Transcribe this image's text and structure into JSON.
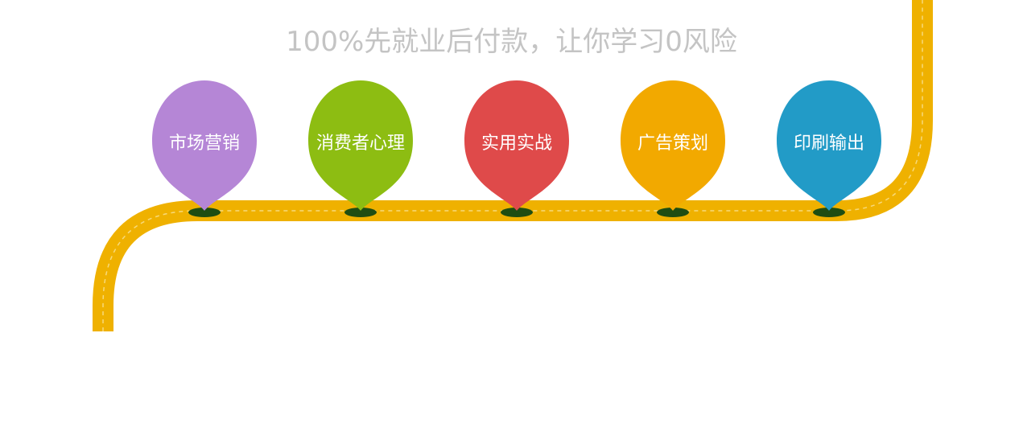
{
  "headline": "100%先就业后付款，让你学习0风险",
  "colors": {
    "track": "#efb100",
    "track_dash": "#f7d97a",
    "headline": "#c4c4c4",
    "pin_base": "#1e4d12"
  },
  "pins": [
    {
      "label": "市场营销",
      "color": "#b586d6",
      "icon": "map-pin-icon"
    },
    {
      "label": "消费者心理",
      "color": "#8dbd12",
      "icon": "map-pin-icon"
    },
    {
      "label": "实用实战",
      "color": "#df4a4a",
      "icon": "map-pin-icon"
    },
    {
      "label": "广告策划",
      "color": "#f2a900",
      "icon": "map-pin-icon"
    },
    {
      "label": "印刷输出",
      "color": "#229bc7",
      "icon": "map-pin-icon"
    }
  ]
}
